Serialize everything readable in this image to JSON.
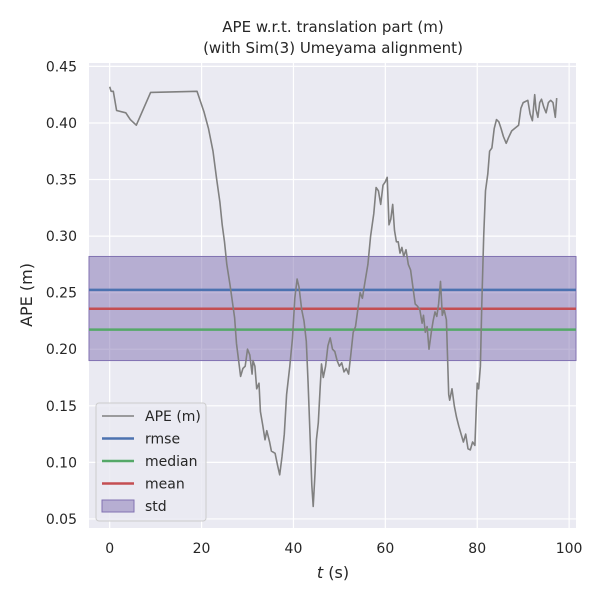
{
  "chart_data": {
    "type": "line",
    "title": [
      "APE w.r.t. translation part (m)",
      "(with Sim(3) Umeyama alignment)"
    ],
    "xlabel_var": "t",
    "xlabel_unit": " (s)",
    "ylabel": "APE (m)",
    "xlim": [
      -4.5,
      101.5
    ],
    "ylim": [
      0.042,
      0.453
    ],
    "x_ticks": [
      0,
      20,
      40,
      60,
      80,
      100
    ],
    "x_tick_labels": [
      "0",
      "20",
      "40",
      "60",
      "80",
      "100"
    ],
    "y_ticks": [
      0.05,
      0.1,
      0.15,
      0.2,
      0.25,
      0.3,
      0.35,
      0.4,
      0.45
    ],
    "y_tick_labels": [
      "0.05",
      "0.10",
      "0.15",
      "0.20",
      "0.25",
      "0.30",
      "0.35",
      "0.40",
      "0.45"
    ],
    "grid": true,
    "legend_position": "lower-left",
    "legend": [
      "APE (m)",
      "rmse",
      "median",
      "mean",
      "std"
    ],
    "stats": {
      "rmse": 0.2525,
      "median": 0.2173,
      "mean": 0.2358,
      "std_band": [
        0.19,
        0.282
      ]
    },
    "colors": {
      "ape": "#808080",
      "rmse": "#4c72b0",
      "median": "#55a868",
      "mean": "#c44e52",
      "std": "#8172b2",
      "background": "#eaeaf2",
      "grid": "#ffffff"
    },
    "series": [
      {
        "name": "APE (m)",
        "points": [
          [
            0.0,
            0.432
          ],
          [
            0.3,
            0.428
          ],
          [
            0.8,
            0.428
          ],
          [
            1.5,
            0.411
          ],
          [
            3.5,
            0.409
          ],
          [
            4.5,
            0.403
          ],
          [
            5.8,
            0.398
          ],
          [
            8.9,
            0.427
          ],
          [
            19.0,
            0.428
          ],
          [
            20.5,
            0.41
          ],
          [
            21.5,
            0.395
          ],
          [
            22.5,
            0.375
          ],
          [
            23.3,
            0.35
          ],
          [
            24.0,
            0.33
          ],
          [
            24.5,
            0.31
          ],
          [
            25.0,
            0.295
          ],
          [
            25.5,
            0.275
          ],
          [
            26.2,
            0.257
          ],
          [
            26.6,
            0.245
          ],
          [
            27.2,
            0.228
          ],
          [
            27.6,
            0.205
          ],
          [
            28.2,
            0.186
          ],
          [
            28.5,
            0.176
          ],
          [
            29.0,
            0.183
          ],
          [
            29.5,
            0.185
          ],
          [
            30.0,
            0.2
          ],
          [
            30.5,
            0.195
          ],
          [
            31.0,
            0.178
          ],
          [
            31.2,
            0.19
          ],
          [
            31.6,
            0.185
          ],
          [
            32.0,
            0.165
          ],
          [
            32.5,
            0.17
          ],
          [
            32.8,
            0.145
          ],
          [
            33.3,
            0.133
          ],
          [
            33.8,
            0.12
          ],
          [
            34.2,
            0.128
          ],
          [
            34.8,
            0.118
          ],
          [
            35.2,
            0.11
          ],
          [
            36.0,
            0.108
          ],
          [
            36.5,
            0.098
          ],
          [
            37.0,
            0.089
          ],
          [
            37.5,
            0.105
          ],
          [
            38.0,
            0.125
          ],
          [
            38.5,
            0.16
          ],
          [
            39.2,
            0.185
          ],
          [
            39.8,
            0.21
          ],
          [
            40.3,
            0.245
          ],
          [
            40.8,
            0.262
          ],
          [
            41.2,
            0.255
          ],
          [
            41.8,
            0.235
          ],
          [
            42.3,
            0.225
          ],
          [
            42.8,
            0.207
          ],
          [
            43.2,
            0.17
          ],
          [
            43.6,
            0.125
          ],
          [
            44.0,
            0.08
          ],
          [
            44.3,
            0.061
          ],
          [
            44.7,
            0.09
          ],
          [
            45.0,
            0.12
          ],
          [
            45.4,
            0.135
          ],
          [
            45.8,
            0.165
          ],
          [
            46.1,
            0.187
          ],
          [
            46.5,
            0.175
          ],
          [
            47.0,
            0.185
          ],
          [
            47.5,
            0.203
          ],
          [
            48.0,
            0.21
          ],
          [
            48.5,
            0.2
          ],
          [
            49.0,
            0.198
          ],
          [
            49.5,
            0.19
          ],
          [
            50.0,
            0.185
          ],
          [
            50.5,
            0.188
          ],
          [
            51.0,
            0.18
          ],
          [
            51.5,
            0.183
          ],
          [
            52.0,
            0.178
          ],
          [
            52.5,
            0.196
          ],
          [
            53.0,
            0.215
          ],
          [
            53.5,
            0.22
          ],
          [
            54.0,
            0.235
          ],
          [
            54.5,
            0.25
          ],
          [
            55.0,
            0.245
          ],
          [
            55.5,
            0.258
          ],
          [
            56.2,
            0.275
          ],
          [
            56.8,
            0.3
          ],
          [
            57.5,
            0.32
          ],
          [
            58.0,
            0.343
          ],
          [
            58.5,
            0.34
          ],
          [
            59.0,
            0.328
          ],
          [
            59.5,
            0.345
          ],
          [
            60.0,
            0.348
          ],
          [
            60.4,
            0.352
          ],
          [
            60.8,
            0.31
          ],
          [
            61.2,
            0.315
          ],
          [
            61.6,
            0.328
          ],
          [
            62.0,
            0.305
          ],
          [
            62.4,
            0.295
          ],
          [
            62.8,
            0.295
          ],
          [
            63.2,
            0.285
          ],
          [
            63.6,
            0.29
          ],
          [
            64.0,
            0.282
          ],
          [
            64.5,
            0.288
          ],
          [
            65.0,
            0.275
          ],
          [
            65.5,
            0.27
          ],
          [
            66.0,
            0.255
          ],
          [
            66.5,
            0.24
          ],
          [
            67.0,
            0.238
          ],
          [
            67.5,
            0.235
          ],
          [
            68.0,
            0.223
          ],
          [
            68.3,
            0.23
          ],
          [
            68.7,
            0.215
          ],
          [
            69.1,
            0.22
          ],
          [
            69.5,
            0.2
          ],
          [
            70.0,
            0.215
          ],
          [
            70.4,
            0.225
          ],
          [
            70.8,
            0.233
          ],
          [
            71.2,
            0.229
          ],
          [
            71.6,
            0.24
          ],
          [
            72.0,
            0.26
          ],
          [
            72.4,
            0.23
          ],
          [
            72.8,
            0.235
          ],
          [
            73.3,
            0.226
          ],
          [
            73.8,
            0.16
          ],
          [
            74.0,
            0.155
          ],
          [
            74.5,
            0.165
          ],
          [
            75.0,
            0.15
          ],
          [
            75.5,
            0.14
          ],
          [
            76.0,
            0.132
          ],
          [
            76.5,
            0.125
          ],
          [
            77.0,
            0.118
          ],
          [
            77.5,
            0.125
          ],
          [
            78.0,
            0.112
          ],
          [
            78.5,
            0.111
          ],
          [
            79.0,
            0.118
          ],
          [
            79.5,
            0.115
          ],
          [
            80.0,
            0.17
          ],
          [
            80.3,
            0.165
          ],
          [
            80.7,
            0.185
          ],
          [
            81.0,
            0.24
          ],
          [
            81.4,
            0.3
          ],
          [
            81.8,
            0.34
          ],
          [
            82.3,
            0.355
          ],
          [
            82.7,
            0.375
          ],
          [
            83.2,
            0.378
          ],
          [
            83.7,
            0.395
          ],
          [
            84.2,
            0.403
          ],
          [
            84.7,
            0.401
          ],
          [
            85.2,
            0.395
          ],
          [
            85.7,
            0.388
          ],
          [
            86.3,
            0.382
          ],
          [
            86.8,
            0.387
          ],
          [
            87.5,
            0.393
          ],
          [
            89.0,
            0.398
          ],
          [
            89.5,
            0.413
          ],
          [
            90.0,
            0.418
          ],
          [
            91.0,
            0.42
          ],
          [
            91.5,
            0.408
          ],
          [
            92.0,
            0.402
          ],
          [
            92.5,
            0.425
          ],
          [
            92.8,
            0.412
          ],
          [
            93.2,
            0.405
          ],
          [
            93.6,
            0.418
          ],
          [
            94.0,
            0.421
          ],
          [
            94.5,
            0.414
          ],
          [
            95.0,
            0.409
          ],
          [
            95.5,
            0.418
          ],
          [
            96.0,
            0.42
          ],
          [
            96.5,
            0.418
          ],
          [
            97.0,
            0.405
          ],
          [
            97.3,
            0.422
          ]
        ]
      }
    ]
  }
}
